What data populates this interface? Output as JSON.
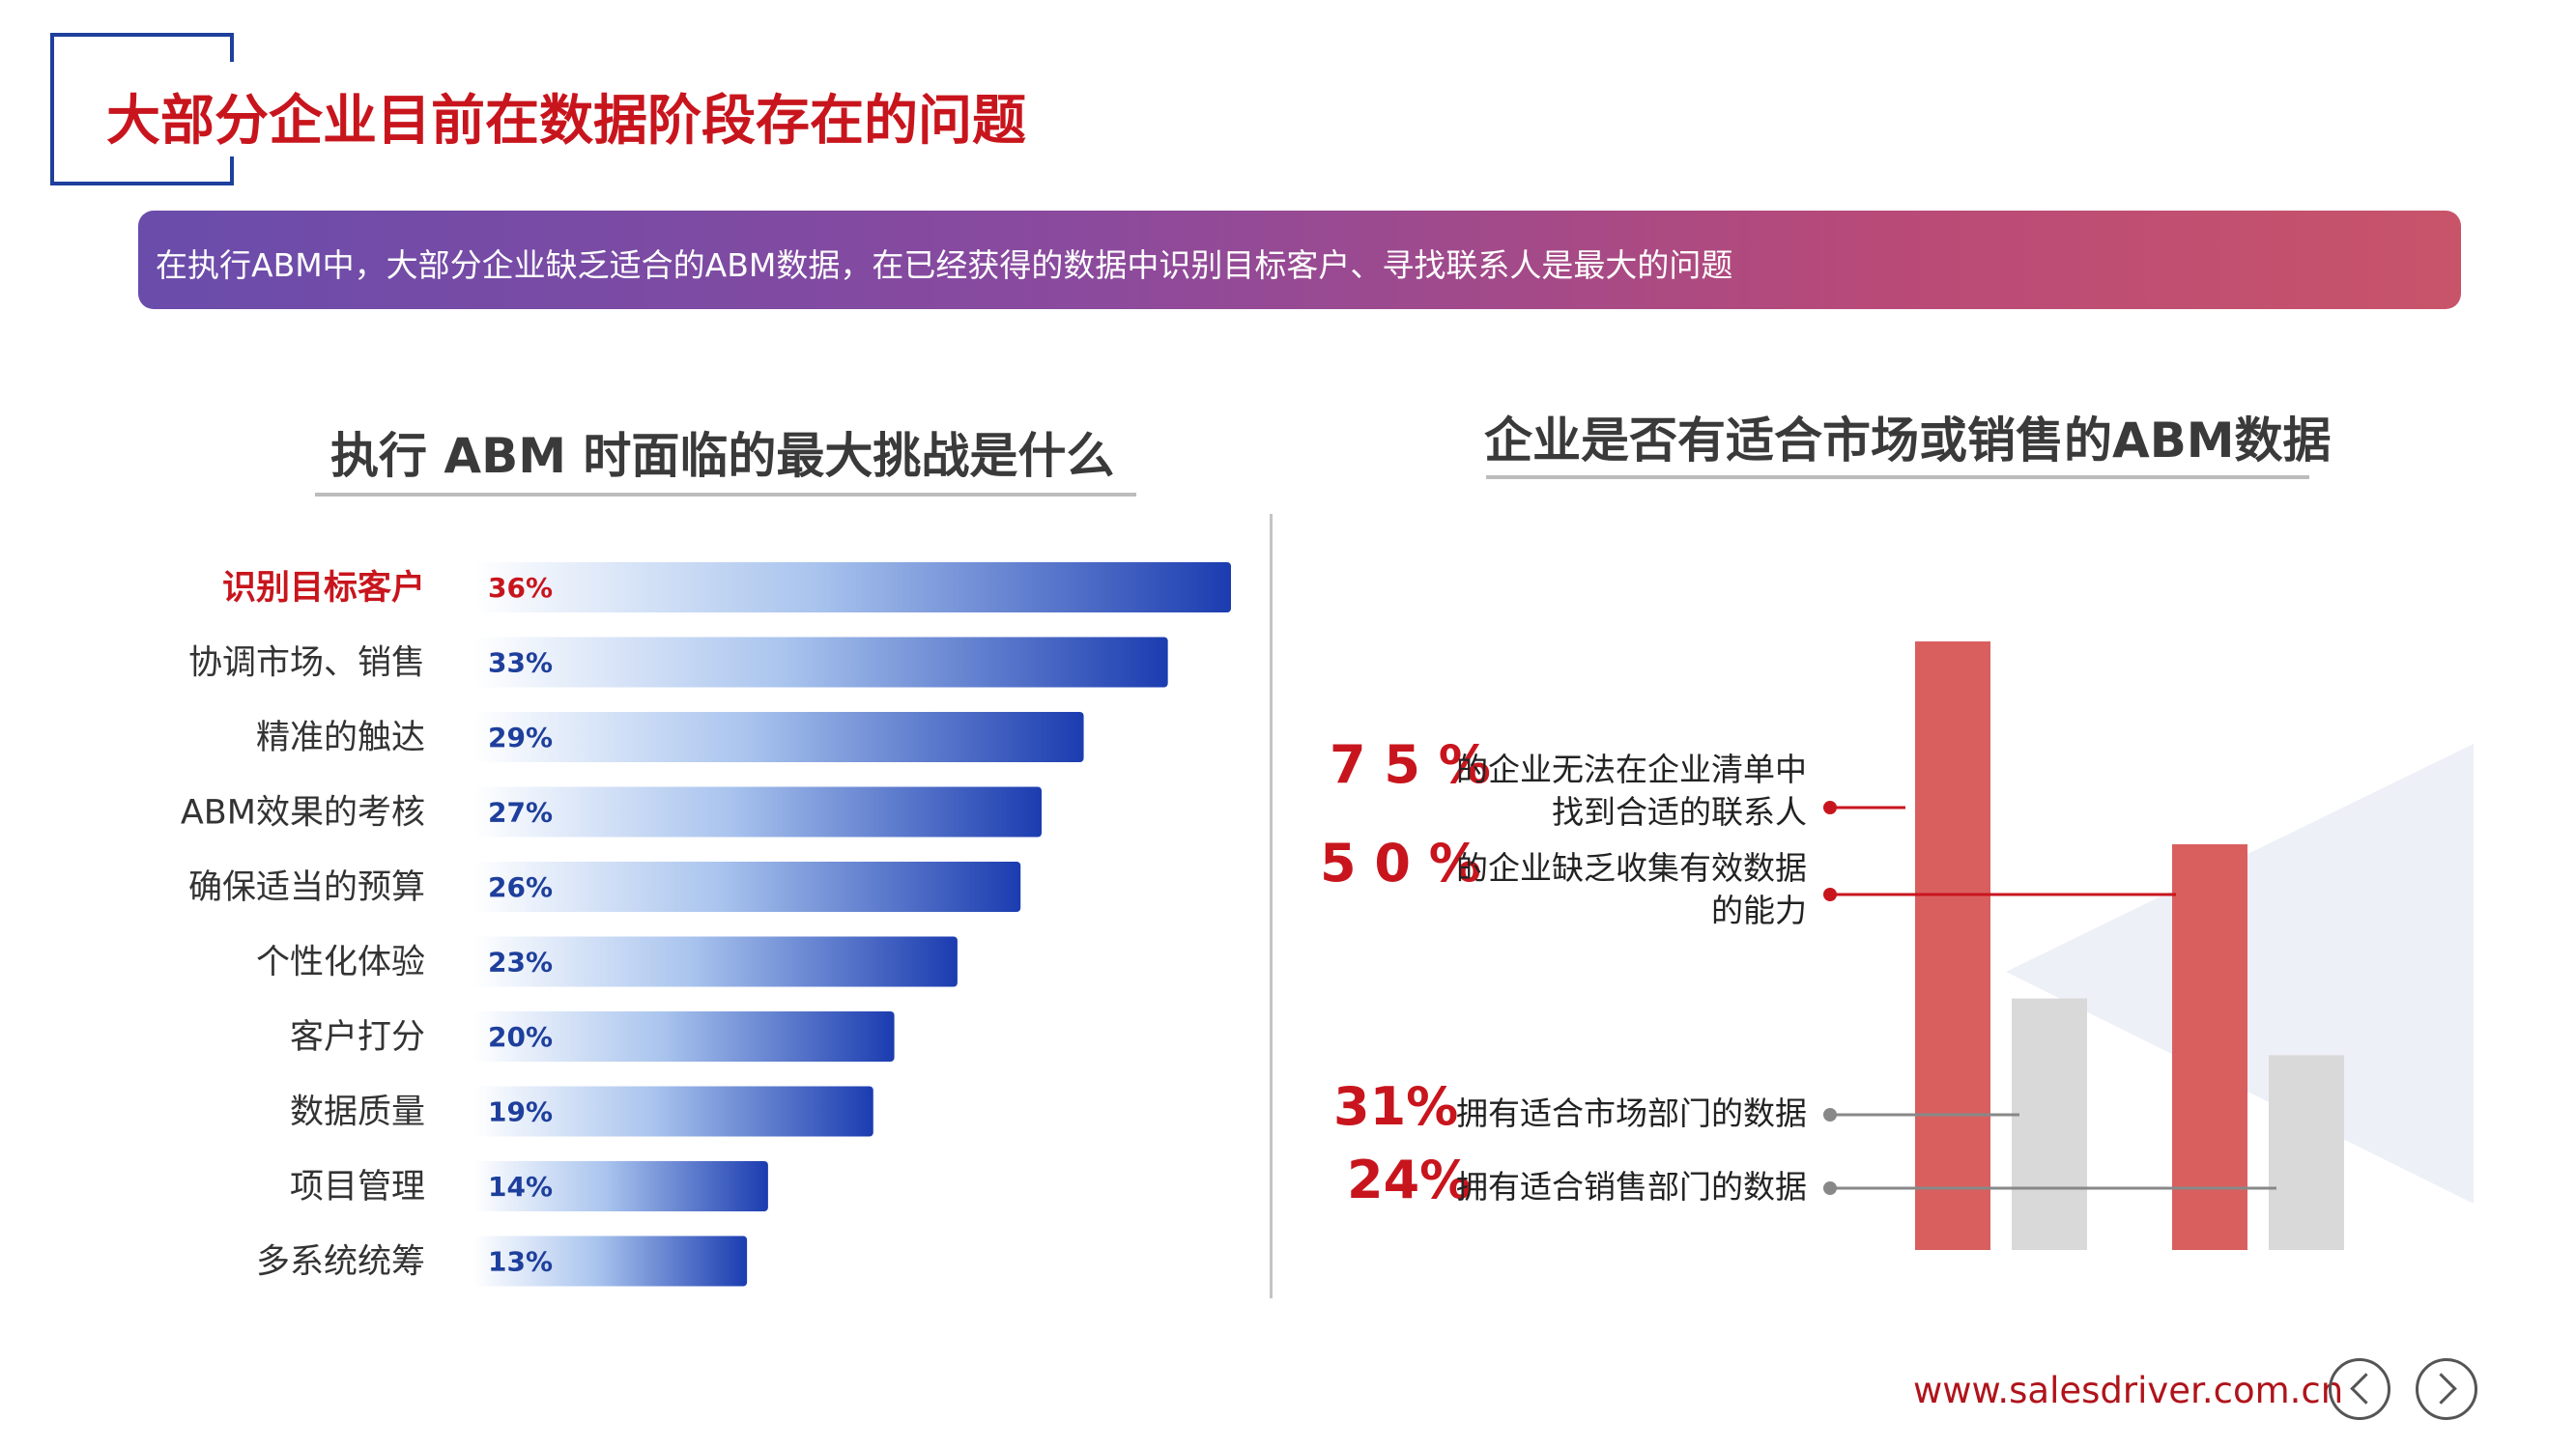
{
  "header": {
    "title": "大部分企业目前在数据阶段存在的问题",
    "banner_text": "在执行ABM中，大部分企业缺乏适合的ABM数据，在已经获得的数据中识别目标客户、寻找联系人是最大的问题"
  },
  "left_panel": {
    "title": "执行 ABM 时面临的最大挑战是什么"
  },
  "right_panel": {
    "title": "企业是否有适合市场或销售的ABM数据"
  },
  "footer": {
    "url": "www.salesdriver.com.cn"
  },
  "colors": {
    "accent_red": "#c8151d",
    "bar_blue": "#1b3cb0",
    "bar_red": "#d95f5f",
    "bar_gray": "#d9d9d9",
    "label_blue": "#1e3f9c"
  },
  "icons": [
    "chevron-left-icon",
    "chevron-right-icon"
  ],
  "chart_data": [
    {
      "type": "bar",
      "orientation": "horizontal",
      "categories": [
        "识别目标客户",
        "协调市场、销售",
        "精准的触达",
        "ABM效果的考核",
        "确保适当的预算",
        "个性化体验",
        "客户打分",
        "数据质量",
        "项目管理",
        "多系统统筹"
      ],
      "values": [
        36,
        33,
        29,
        27,
        26,
        23,
        20,
        19,
        14,
        13
      ],
      "value_labels": [
        "36%",
        "33%",
        "29%",
        "27%",
        "26%",
        "23%",
        "20%",
        "19%",
        "14%",
        "13%"
      ],
      "highlight_index": 0,
      "xlim": [
        0,
        36
      ]
    },
    {
      "type": "bar",
      "categories": [
        "",
        ""
      ],
      "series": [
        {
          "values": [
            75,
            50
          ]
        },
        {
          "values": [
            31,
            24
          ]
        }
      ],
      "ylim": [
        0,
        75
      ],
      "annotations": [
        {
          "value": "7 5 %",
          "text_line1": "的企业无法在企业清单中",
          "text_line2": "找到合适的联系人"
        },
        {
          "value": "5 0 %",
          "text_line1": "的企业缺乏收集有效数据",
          "text_line2": "的能力"
        },
        {
          "value": "31%",
          "text_line1": "拥有适合市场部门的数据",
          "text_line2": ""
        },
        {
          "value": "24%",
          "text_line1": "拥有适合销售部门的数据",
          "text_line2": ""
        }
      ]
    }
  ]
}
